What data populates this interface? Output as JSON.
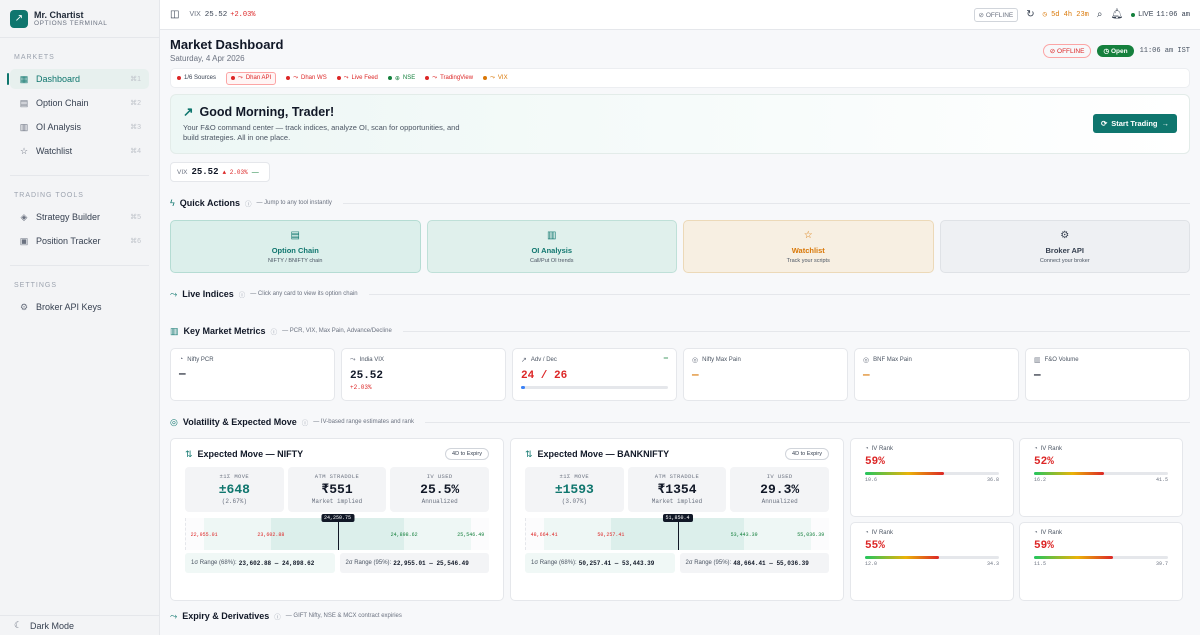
{
  "brand": {
    "name": "Mr. Chartist",
    "tagline": "OPTIONS TERMINAL"
  },
  "sidebar": {
    "sections": [
      {
        "heading": "MARKETS",
        "items": [
          {
            "label": "Dashboard",
            "shortcut": "⌘1",
            "icon": "dashboard-icon",
            "active": true
          },
          {
            "label": "Option Chain",
            "shortcut": "⌘2",
            "icon": "table-icon",
            "active": false
          },
          {
            "label": "OI Analysis",
            "shortcut": "⌘3",
            "icon": "bar-chart-icon",
            "active": false
          },
          {
            "label": "Watchlist",
            "shortcut": "⌘4",
            "icon": "star-icon",
            "active": false
          }
        ]
      },
      {
        "heading": "TRADING TOOLS",
        "items": [
          {
            "label": "Strategy Builder",
            "shortcut": "⌘5",
            "icon": "layers-icon",
            "active": false
          },
          {
            "label": "Position Tracker",
            "shortcut": "⌘6",
            "icon": "briefcase-icon",
            "active": false
          }
        ]
      },
      {
        "heading": "SETTINGS",
        "items": [
          {
            "label": "Broker API Keys",
            "shortcut": "",
            "icon": "gear-icon",
            "active": false
          }
        ]
      }
    ],
    "dark_mode_label": "Dark Mode"
  },
  "topbar": {
    "vix_label": "VIX",
    "vix_value": "25.52",
    "vix_change": "+2.03%",
    "offline_label": "OFFLINE",
    "timer": "5d 4h 23m",
    "live_label": "LIVE",
    "live_time": "11:06 am"
  },
  "header": {
    "title": "Market Dashboard",
    "date": "Saturday, 4 Apr 2026",
    "offline_label": "OFFLINE",
    "open_label": "Open",
    "time": "11:06 am IST"
  },
  "sources": {
    "count": "1/6 Sources",
    "items": [
      {
        "label": "Dhan API",
        "status": "error",
        "boxed": true
      },
      {
        "label": "Dhan WS",
        "status": "error",
        "boxed": false
      },
      {
        "label": "Live Feed",
        "status": "error",
        "boxed": false
      },
      {
        "label": "NSE",
        "status": "ok",
        "boxed": false
      },
      {
        "label": "TradingView",
        "status": "error",
        "boxed": false
      },
      {
        "label": "VIX",
        "status": "warn",
        "boxed": false
      }
    ],
    "colors": {
      "error": "#dc2626",
      "ok": "#15803d",
      "warn": "#d97706"
    }
  },
  "greeting": {
    "title": "Good Morning, Trader!",
    "description": "Your F&O command center — track indices, analyze OI, scan for opportunities, and build strategies. All in one place.",
    "button_label": "Start Trading"
  },
  "vix_chip": {
    "label": "VIX",
    "value": "25.52",
    "change": "▲ 2.03%",
    "trend": "—"
  },
  "quick_actions": {
    "title": "Quick Actions",
    "subtitle": "— Jump to any tool instantly",
    "cards": [
      {
        "title": "Option Chain",
        "subtitle": "NIFTY / BNIFTY chain",
        "icon": "table-icon"
      },
      {
        "title": "OI Analysis",
        "subtitle": "Call/Put OI trends",
        "icon": "bar-chart-icon"
      },
      {
        "title": "Watchlist",
        "subtitle": "Track your scripts",
        "icon": "star-icon"
      },
      {
        "title": "Broker API",
        "subtitle": "Connect your broker",
        "icon": "gear-icon"
      }
    ]
  },
  "live_indices": {
    "title": "Live Indices",
    "subtitle": "— Click any card to view its option chain"
  },
  "key_metrics": {
    "title": "Key Market Metrics",
    "subtitle": "— PCR, VIX, Max Pain, Advance/Decline",
    "cards": [
      {
        "label": "Nifty PCR",
        "value": "—",
        "change": ""
      },
      {
        "label": "India VIX",
        "value": "25.52",
        "change": "+2.03%"
      },
      {
        "label": "Adv / Dec",
        "value": "24 / 26",
        "change": "",
        "mini": "═",
        "advance_ratio": 0.48
      },
      {
        "label": "Nifty Max Pain",
        "value": "—",
        "change": ""
      },
      {
        "label": "BNF Max Pain",
        "value": "—",
        "change": ""
      },
      {
        "label": "F&O Volume",
        "value": "—",
        "change": ""
      }
    ]
  },
  "volatility": {
    "title": "Volatility & Expected Move",
    "subtitle": "— IV-based range estimates and rank",
    "expected_moves": [
      {
        "title": "Expected Move — NIFTY",
        "badge": "4D to Expiry",
        "stats": [
          {
            "label": "±1Σ MOVE",
            "value": "±648",
            "sub": "(2.67%)"
          },
          {
            "label": "ATM STRADDLE",
            "value": "₹551",
            "sub": "Market implied"
          },
          {
            "label": "IV USED",
            "value": "25.5%",
            "sub": "Annualized"
          }
        ],
        "spot": "24,250.75",
        "ticks": [
          "22,955.01",
          "23,602.88",
          "24,898.62",
          "25,546.49"
        ],
        "scale": {
          "min": 22955.01,
          "max": 25546.49,
          "one_sigma": [
            23602.88,
            24898.62
          ],
          "spot": 24250.75
        },
        "range1_label": "1σ Range (68%):",
        "range1_value": "23,602.88 — 24,898.62",
        "range2_label": "2σ Range (95%):",
        "range2_value": "22,955.01 — 25,546.49"
      },
      {
        "title": "Expected Move — BANKNIFTY",
        "badge": "4D to Expiry",
        "stats": [
          {
            "label": "±1Σ MOVE",
            "value": "±1593",
            "sub": "(3.07%)"
          },
          {
            "label": "ATM STRADDLE",
            "value": "₹1354",
            "sub": "Market implied"
          },
          {
            "label": "IV USED",
            "value": "29.3%",
            "sub": "Annualized"
          }
        ],
        "spot": "51,850.4",
        "ticks": [
          "48,664.41",
          "50,257.41",
          "53,443.39",
          "55,036.39"
        ],
        "scale": {
          "min": 48664.41,
          "max": 55036.39,
          "one_sigma": [
            50257.41,
            53443.39
          ],
          "spot": 51850.4
        },
        "range1_label": "1σ Range (68%):",
        "range1_value": "50,257.41 — 53,443.39",
        "range2_label": "2σ Range (95%):",
        "range2_value": "48,664.41 — 55,036.39"
      }
    ],
    "iv_ranks": [
      {
        "label": "IV Rank",
        "value": "59%",
        "fill": 0.59,
        "min": "10.6",
        "max": "36.8"
      },
      {
        "label": "IV Rank",
        "value": "52%",
        "fill": 0.52,
        "min": "16.2",
        "max": "41.5"
      },
      {
        "label": "IV Rank",
        "value": "55%",
        "fill": 0.55,
        "min": "12.0",
        "max": "34.3"
      },
      {
        "label": "IV Rank",
        "value": "59%",
        "fill": 0.59,
        "min": "11.5",
        "max": "39.7"
      }
    ]
  },
  "expiry": {
    "title": "Expiry & Derivatives",
    "subtitle": "— GIFT Nifty, NSE & MCX contract expiries"
  }
}
